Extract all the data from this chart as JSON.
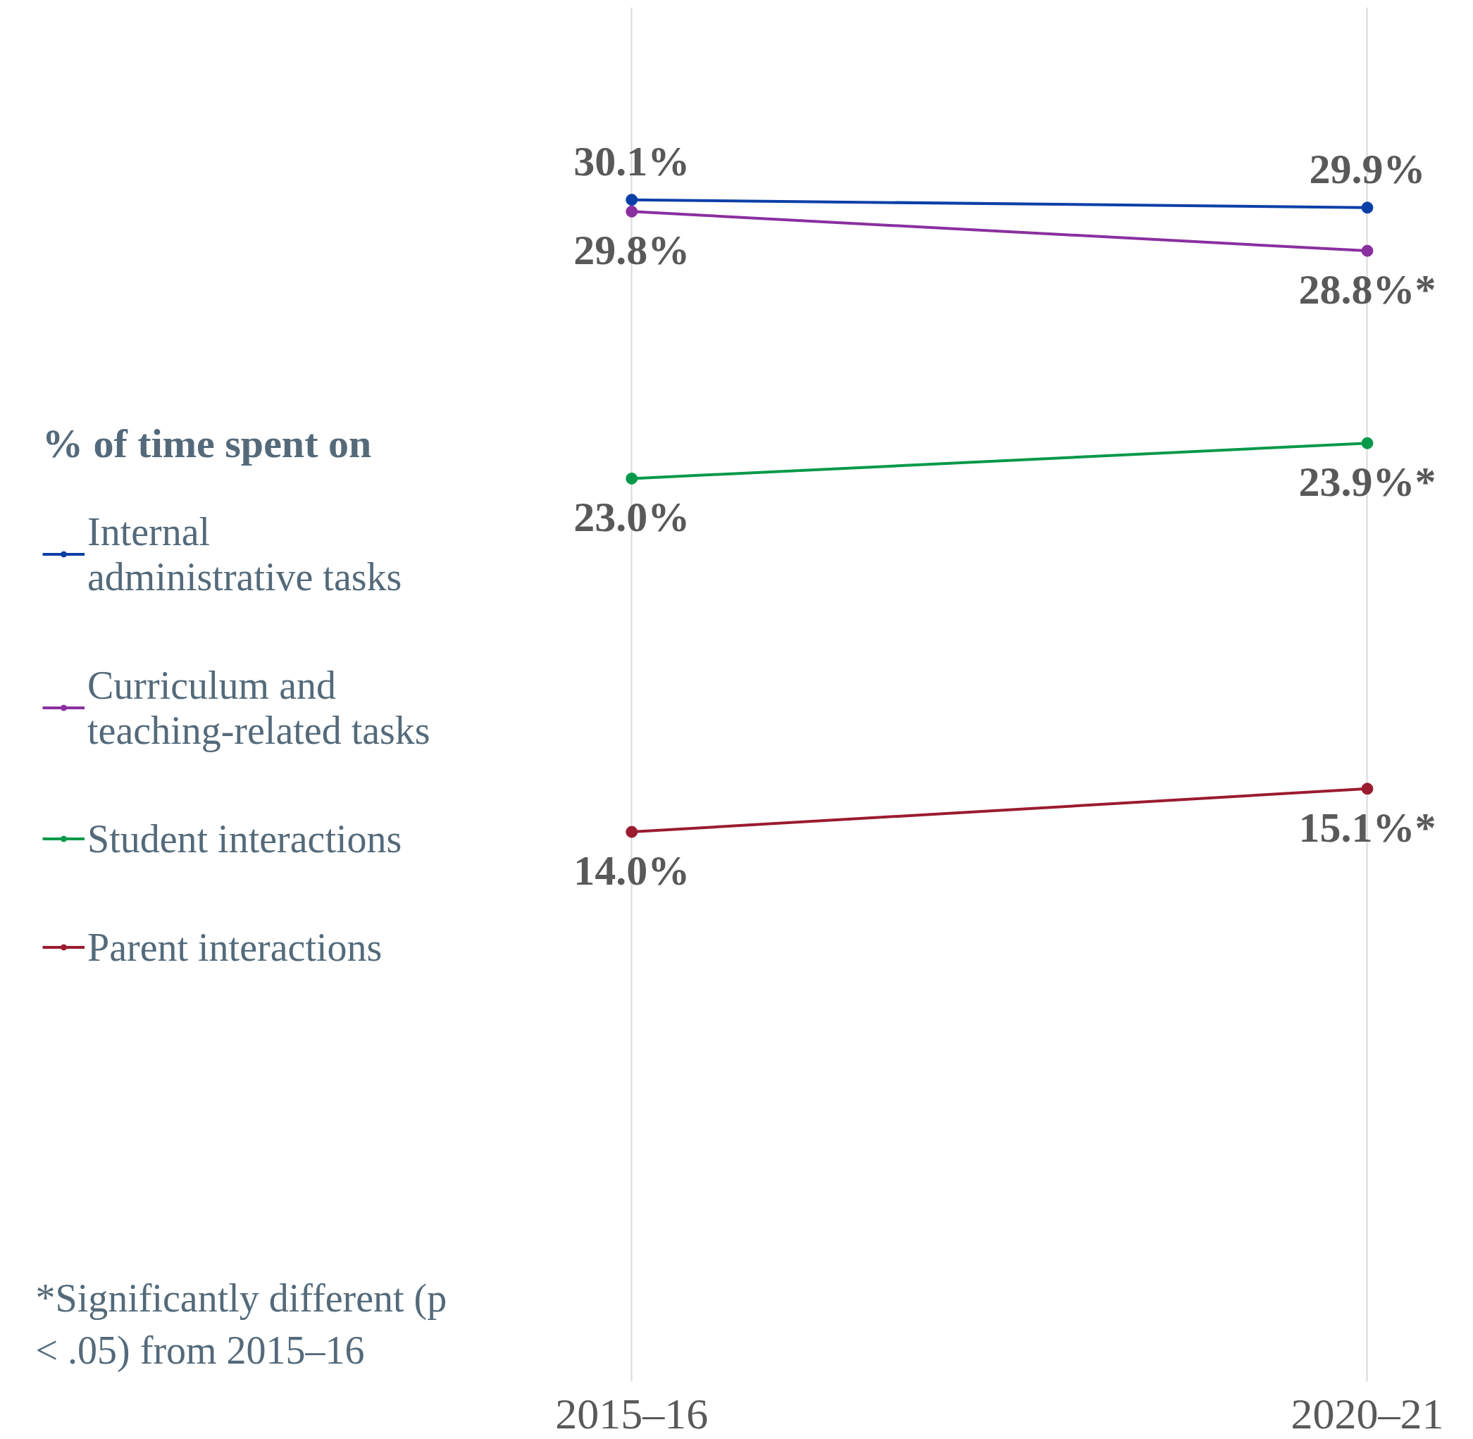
{
  "chart_data": {
    "type": "line",
    "legend_title": "% of time spent on",
    "categories": [
      "2015–16",
      "2020–21"
    ],
    "ylim": [
      0,
      35
    ],
    "series": [
      {
        "name": "Internal administrative tasks",
        "color": "#0b3fa8",
        "values": [
          30.1,
          29.9
        ],
        "value_labels": [
          "30.1%",
          "29.9%"
        ]
      },
      {
        "name": "Curriculum and teaching-related tasks",
        "color": "#8a2fa0",
        "values": [
          29.8,
          28.8
        ],
        "value_labels": [
          "29.8%",
          "28.8%*"
        ]
      },
      {
        "name": "Student interactions",
        "color": "#06994a",
        "values": [
          23.0,
          23.9
        ],
        "value_labels": [
          "23.0%",
          "23.9%*"
        ]
      },
      {
        "name": "Parent interactions",
        "color": "#9b1b30",
        "values": [
          14.0,
          15.1
        ],
        "value_labels": [
          "14.0%",
          "15.1%*"
        ]
      }
    ],
    "marker": "circle",
    "grid": "x",
    "legend": "left",
    "annotations": [
      "*Significantly different (p < .05) from 2015–16"
    ]
  }
}
